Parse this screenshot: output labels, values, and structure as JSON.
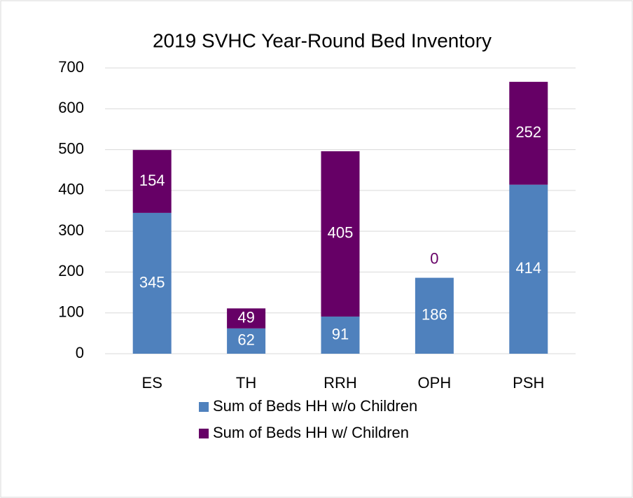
{
  "chart_data": {
    "type": "stacked_bar",
    "title": "2019 SVHC Year-Round Bed Inventory",
    "categories": [
      "ES",
      "TH",
      "RRH",
      "OPH",
      "PSH"
    ],
    "series": [
      {
        "name": "Sum of Beds HH w/o Children",
        "color": "#4f81bd",
        "values": [
          345,
          62,
          91,
          186,
          414
        ]
      },
      {
        "name": "Sum of Beds HH w/ Children",
        "color": "#660066",
        "values": [
          154,
          49,
          405,
          0,
          252
        ]
      }
    ],
    "ylim": [
      0,
      700
    ],
    "yticks": [
      0,
      100,
      200,
      300,
      400,
      500,
      600,
      700
    ],
    "grid": true,
    "legend": "bottom"
  }
}
